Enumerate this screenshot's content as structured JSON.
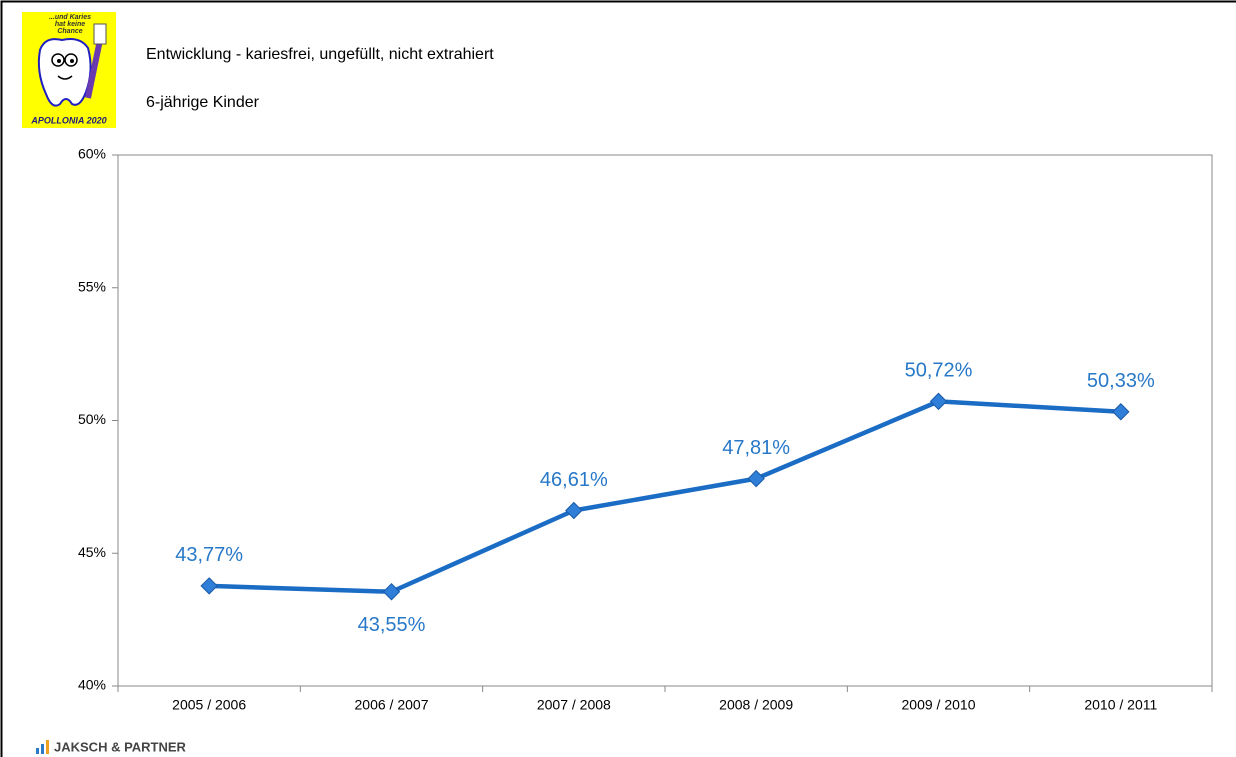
{
  "logo": {
    "slogan": [
      "...und Karies",
      "hat keine",
      "Chance"
    ],
    "name": "APOLLONIA 2020"
  },
  "footer": {
    "brand": "JAKSCH & PARTNER"
  },
  "chart_data": {
    "type": "line",
    "title": "Entwicklung - kariesfrei, ungefüllt, nicht extrahiert",
    "subtitle": "6-jährige Kinder",
    "categories": [
      "2005 / 2006",
      "2006 / 2007",
      "2007 / 2008",
      "2008 / 2009",
      "2009 / 2010",
      "2010 / 2011"
    ],
    "values": [
      43.77,
      43.55,
      46.61,
      47.81,
      50.72,
      50.33
    ],
    "value_labels": [
      "43,77%",
      "43,55%",
      "46,61%",
      "47,81%",
      "50,72%",
      "50,33%"
    ],
    "color": "#1a6cc4",
    "ylim": [
      40,
      60
    ],
    "yticks": [
      {
        "value": 40,
        "label": "40%"
      },
      {
        "value": 45,
        "label": "45%"
      },
      {
        "value": 50,
        "label": "50%"
      },
      {
        "value": 55,
        "label": "55%"
      },
      {
        "value": 60,
        "label": "60%"
      }
    ],
    "grid": false
  }
}
